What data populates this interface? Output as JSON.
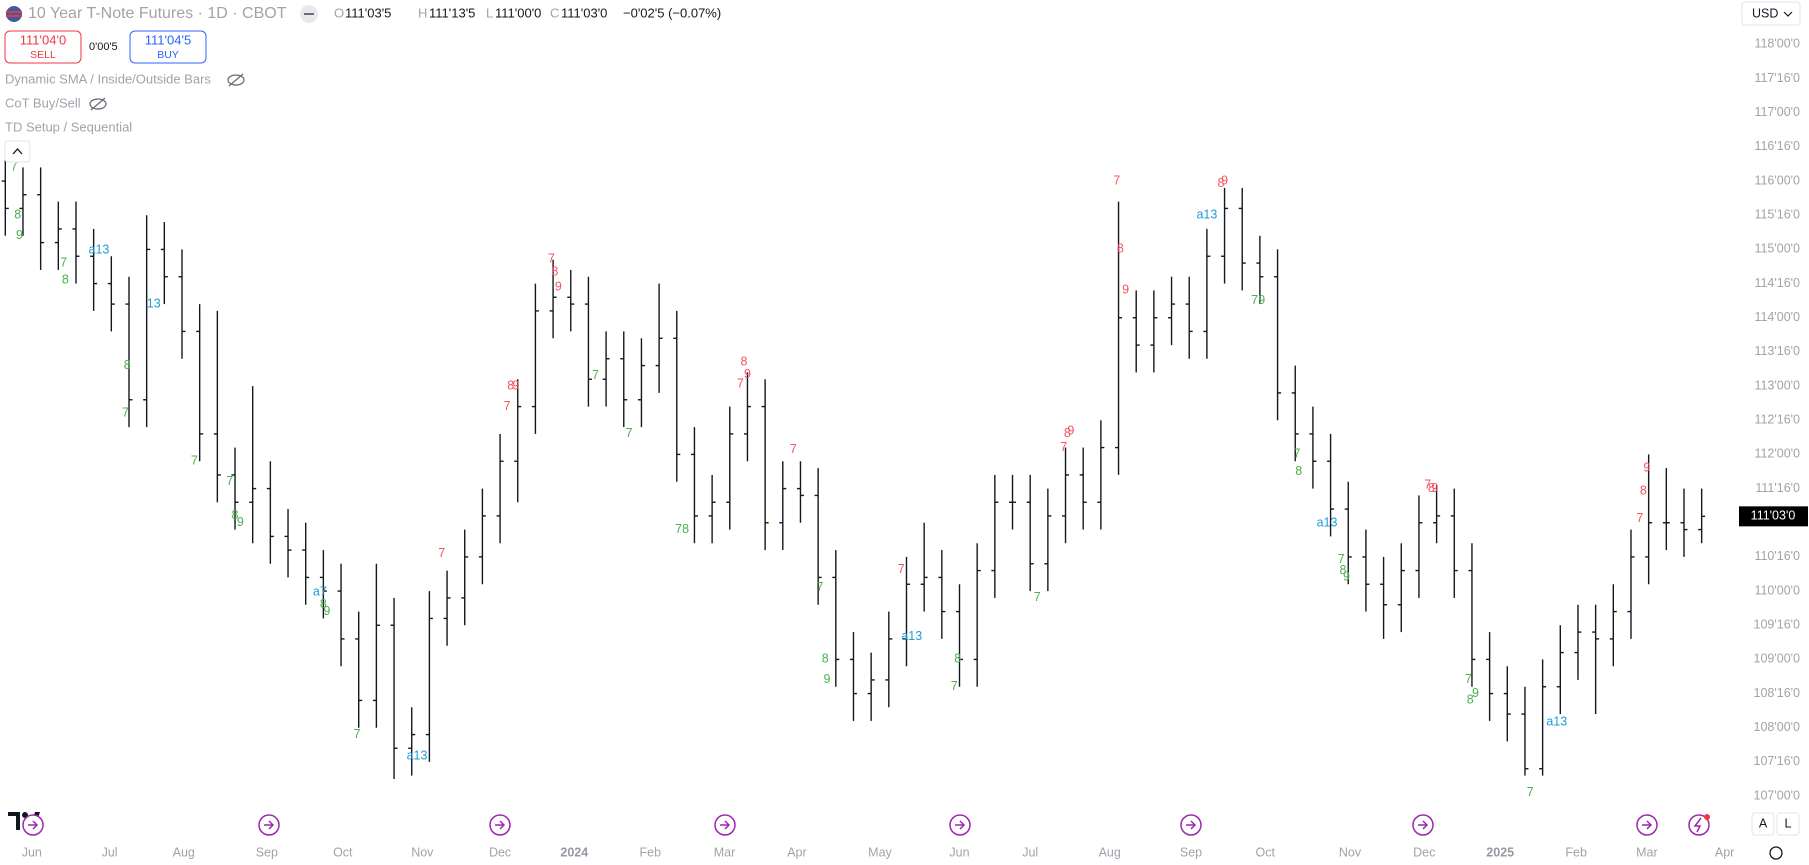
{
  "header": {
    "symbol": "10 Year T-Note Futures · 1D · CBOT",
    "ohlc": [
      {
        "key": "O",
        "value": "111'03'5"
      },
      {
        "key": "H",
        "value": "111'13'5"
      },
      {
        "key": "L",
        "value": "111'00'0"
      },
      {
        "key": "C",
        "value": "111'03'0"
      }
    ],
    "change": "−0'02'5 (−0.07%)",
    "sell": {
      "price": "111'04'0",
      "label": "SELL"
    },
    "spread": "0'00'5",
    "buy": {
      "price": "111'04'5",
      "label": "BUY"
    },
    "indicators": [
      "Dynamic SMA / Inside/Outside Bars",
      "CoT Buy/Sell",
      "TD Setup / Sequential"
    ],
    "currency": "USD",
    "buttons": [
      "A",
      "L"
    ]
  },
  "chart_data": {
    "type": "ohlc",
    "color": "#131722",
    "xlim": [
      -0.3,
      98
    ],
    "ylim": [
      106.65,
      118.65
    ],
    "xticks": [
      {
        "value": 1.5,
        "label": "Jun"
      },
      {
        "value": 5.9,
        "label": "Jul"
      },
      {
        "value": 10.1,
        "label": "Aug"
      },
      {
        "value": 14.8,
        "label": "Sep"
      },
      {
        "value": 19.1,
        "label": "Oct"
      },
      {
        "value": 23.6,
        "label": "Nov"
      },
      {
        "value": 28.0,
        "label": "Dec"
      },
      {
        "value": 32.2,
        "label": "2024"
      },
      {
        "value": 36.5,
        "label": "Feb"
      },
      {
        "value": 40.7,
        "label": "Mar"
      },
      {
        "value": 44.8,
        "label": "Apr"
      },
      {
        "value": 49.5,
        "label": "May"
      },
      {
        "value": 54.0,
        "label": "Jun"
      },
      {
        "value": 58.0,
        "label": "Jul"
      },
      {
        "value": 62.5,
        "label": "Aug"
      },
      {
        "value": 67.1,
        "label": "Sep"
      },
      {
        "value": 71.3,
        "label": "Oct"
      },
      {
        "value": 76.1,
        "label": "Nov"
      },
      {
        "value": 80.3,
        "label": "Dec"
      },
      {
        "value": 84.6,
        "label": "2025"
      },
      {
        "value": 88.9,
        "label": "Feb"
      },
      {
        "value": 92.9,
        "label": "Mar"
      },
      {
        "value": 97.3,
        "label": "Apr"
      }
    ],
    "yticks": [
      {
        "value": 107,
        "label": "107'00'0"
      },
      {
        "value": 107.5,
        "label": "107'16'0"
      },
      {
        "value": 108,
        "label": "108'00'0"
      },
      {
        "value": 108.5,
        "label": "108'16'0"
      },
      {
        "value": 109,
        "label": "109'00'0"
      },
      {
        "value": 109.5,
        "label": "109'16'0"
      },
      {
        "value": 110,
        "label": "110'00'0"
      },
      {
        "value": 110.5,
        "label": "110'16'0"
      },
      {
        "value": 111,
        "label": "111'00'0"
      },
      {
        "value": 111.5,
        "label": "111'16'0"
      },
      {
        "value": 112,
        "label": "112'00'0"
      },
      {
        "value": 112.5,
        "label": "112'16'0"
      },
      {
        "value": 113,
        "label": "113'00'0"
      },
      {
        "value": 113.5,
        "label": "113'16'0"
      },
      {
        "value": 114,
        "label": "114'00'0"
      },
      {
        "value": 114.5,
        "label": "114'16'0"
      },
      {
        "value": 115,
        "label": "115'00'0"
      },
      {
        "value": 115.5,
        "label": "115'16'0"
      },
      {
        "value": 116,
        "label": "116'00'0"
      },
      {
        "value": 116.5,
        "label": "116'16'0"
      },
      {
        "value": 117,
        "label": "117'00'0"
      },
      {
        "value": 117.5,
        "label": "117'16'0"
      },
      {
        "value": 118,
        "label": "118'00'0"
      }
    ],
    "last_price": {
      "value": 111.09375,
      "label": "111'03'0"
    },
    "open": [
      116.0,
      115.6,
      115.8,
      115.1,
      115.3,
      114.9,
      114.5,
      114.2,
      112.8,
      115.0,
      114.6,
      113.8,
      112.3,
      111.7,
      111.3,
      111.5,
      110.8,
      110.6,
      110.2,
      110.0,
      109.3,
      108.4,
      109.5,
      107.7,
      107.9,
      109.6,
      109.9,
      110.5,
      111.1,
      111.9,
      112.7,
      114.1,
      114.3,
      114.2,
      113.1,
      113.4,
      112.8,
      113.3,
      113.7,
      112.0,
      111.1,
      111.3,
      112.3,
      112.7,
      111.0,
      111.5,
      111.4,
      110.2,
      109.0,
      108.5,
      108.7,
      109.3,
      110.1,
      110.2,
      109.7,
      109.0,
      110.3,
      111.3,
      111.3,
      110.4,
      111.1,
      111.7,
      111.3,
      112.1,
      114.0,
      113.6,
      114.0,
      114.2,
      113.8,
      114.9,
      115.6,
      114.8,
      114.6,
      112.9,
      112.3,
      111.9,
      111.2,
      110.5,
      110.1,
      109.8,
      110.3,
      111.0,
      111.1,
      110.3,
      109.0,
      108.5,
      108.2,
      107.4,
      108.6,
      109.1,
      109.4,
      109.3,
      109.7,
      110.5,
      111.0,
      111.0,
      110.9
    ],
    "high": [
      116.4,
      116.2,
      116.2,
      115.7,
      115.7,
      115.3,
      114.9,
      114.6,
      115.5,
      115.4,
      115.0,
      114.2,
      114.1,
      112.1,
      113.0,
      111.9,
      111.2,
      111.0,
      110.6,
      110.4,
      109.7,
      110.4,
      109.9,
      108.3,
      110.0,
      110.3,
      110.9,
      111.5,
      112.3,
      113.1,
      114.5,
      114.85,
      114.7,
      114.6,
      113.8,
      113.8,
      113.7,
      114.5,
      114.1,
      112.4,
      111.7,
      112.7,
      113.2,
      113.1,
      111.9,
      111.9,
      111.8,
      110.6,
      109.4,
      109.1,
      109.7,
      110.5,
      111.0,
      110.6,
      110.1,
      110.7,
      111.7,
      111.7,
      111.7,
      111.5,
      112.1,
      112.1,
      112.5,
      115.7,
      114.4,
      114.4,
      114.6,
      114.6,
      115.3,
      115.9,
      115.9,
      115.2,
      115.0,
      113.3,
      112.7,
      112.3,
      111.6,
      110.9,
      110.5,
      110.7,
      111.4,
      111.55,
      111.5,
      110.7,
      109.4,
      108.9,
      108.6,
      109.0,
      109.5,
      109.8,
      109.8,
      110.1,
      110.9,
      112.0,
      111.8,
      111.5,
      111.5
    ],
    "low": [
      115.2,
      115.2,
      114.7,
      114.7,
      114.5,
      114.1,
      113.8,
      112.4,
      112.4,
      114.2,
      113.4,
      111.9,
      111.3,
      110.9,
      110.7,
      110.4,
      110.2,
      109.8,
      109.6,
      108.9,
      108.0,
      108.0,
      107.25,
      107.3,
      107.5,
      109.2,
      109.5,
      110.1,
      110.7,
      111.3,
      112.3,
      113.7,
      113.8,
      112.7,
      112.7,
      112.4,
      112.4,
      112.9,
      111.6,
      110.7,
      110.7,
      110.9,
      111.9,
      110.6,
      110.6,
      111.0,
      109.8,
      108.6,
      108.1,
      108.1,
      108.3,
      108.9,
      109.7,
      109.3,
      108.6,
      108.6,
      109.9,
      110.9,
      110.0,
      110.0,
      110.7,
      110.9,
      110.9,
      111.7,
      113.2,
      113.2,
      113.6,
      113.4,
      113.4,
      114.5,
      114.4,
      114.2,
      112.5,
      111.9,
      111.5,
      110.8,
      110.1,
      109.7,
      109.3,
      109.4,
      109.9,
      110.7,
      109.9,
      108.6,
      108.1,
      107.8,
      107.3,
      107.3,
      108.2,
      108.7,
      108.2,
      108.9,
      109.3,
      110.1,
      110.6,
      110.5,
      110.7
    ],
    "close": [
      115.6,
      115.8,
      115.1,
      115.3,
      114.9,
      114.5,
      114.2,
      112.8,
      115.0,
      114.6,
      113.8,
      112.3,
      111.7,
      111.3,
      111.5,
      110.8,
      110.6,
      110.2,
      110.0,
      109.3,
      108.4,
      109.5,
      107.7,
      107.9,
      109.6,
      109.9,
      110.5,
      111.1,
      111.9,
      112.7,
      114.1,
      114.3,
      114.2,
      113.1,
      113.4,
      112.8,
      113.3,
      113.7,
      112.0,
      111.1,
      111.3,
      112.3,
      112.7,
      111.0,
      111.5,
      111.4,
      110.2,
      109.0,
      108.5,
      108.7,
      109.3,
      110.1,
      110.2,
      109.7,
      109.0,
      110.3,
      111.3,
      111.3,
      110.4,
      111.1,
      111.7,
      111.3,
      112.1,
      114.0,
      113.6,
      114.0,
      114.2,
      113.8,
      114.9,
      115.6,
      114.8,
      114.6,
      112.9,
      112.3,
      111.9,
      111.2,
      110.5,
      110.1,
      109.8,
      110.3,
      111.0,
      111.1,
      110.3,
      109.0,
      108.5,
      108.2,
      107.4,
      108.6,
      109.1,
      109.4,
      109.3,
      109.7,
      110.5,
      111.0,
      111.0,
      110.9,
      111.09375
    ],
    "annotations": [
      {
        "color": "#4caf50",
        "labels": [
          {
            "text": "7",
            "x": 0.5,
            "y": 116.2
          },
          {
            "text": "8",
            "x": 0.7,
            "y": 115.5
          },
          {
            "text": "9",
            "x": 0.8,
            "y": 115.2
          },
          {
            "text": "7",
            "x": 3.3,
            "y": 114.8
          },
          {
            "text": "8",
            "x": 3.4,
            "y": 114.55
          },
          {
            "text": "8",
            "x": 6.9,
            "y": 113.3
          },
          {
            "text": "7",
            "x": 6.8,
            "y": 112.6
          },
          {
            "text": "7",
            "x": 10.7,
            "y": 111.9
          },
          {
            "text": "7",
            "x": 12.7,
            "y": 111.6
          },
          {
            "text": "8",
            "x": 13.0,
            "y": 111.1
          },
          {
            "text": "9",
            "x": 13.3,
            "y": 111.0
          },
          {
            "text": "8",
            "x": 18.0,
            "y": 109.8
          },
          {
            "text": "9",
            "x": 18.2,
            "y": 109.7
          },
          {
            "text": "7",
            "x": 19.9,
            "y": 107.9
          },
          {
            "text": "7",
            "x": 33.4,
            "y": 113.15
          },
          {
            "text": "7",
            "x": 35.3,
            "y": 112.3
          },
          {
            "text": "7",
            "x": 38.1,
            "y": 110.9
          },
          {
            "text": "8",
            "x": 38.5,
            "y": 110.9
          },
          {
            "text": "7",
            "x": 46.1,
            "y": 110.05
          },
          {
            "text": "8",
            "x": 46.4,
            "y": 109.0
          },
          {
            "text": "9",
            "x": 46.5,
            "y": 108.7
          },
          {
            "text": "8",
            "x": 53.9,
            "y": 109.0
          },
          {
            "text": "7",
            "x": 53.7,
            "y": 108.6
          },
          {
            "text": "7",
            "x": 58.4,
            "y": 109.9
          },
          {
            "text": "7",
            "x": 70.7,
            "y": 114.25
          },
          {
            "text": "9",
            "x": 71.1,
            "y": 114.25
          },
          {
            "text": "7",
            "x": 73.1,
            "y": 112.0
          },
          {
            "text": "8",
            "x": 73.2,
            "y": 111.75
          },
          {
            "text": "7",
            "x": 75.6,
            "y": 110.46
          },
          {
            "text": "8",
            "x": 75.7,
            "y": 110.3
          },
          {
            "text": "9",
            "x": 75.9,
            "y": 110.2
          },
          {
            "text": "7",
            "x": 82.8,
            "y": 108.7
          },
          {
            "text": "8",
            "x": 82.9,
            "y": 108.4
          },
          {
            "text": "9",
            "x": 83.2,
            "y": 108.5
          },
          {
            "text": "7",
            "x": 86.3,
            "y": 107.05
          }
        ]
      },
      {
        "color": "#f7525f",
        "labels": [
          {
            "text": "7",
            "x": 24.7,
            "y": 110.55
          },
          {
            "text": "7",
            "x": 28.4,
            "y": 112.7
          },
          {
            "text": "8",
            "x": 28.6,
            "y": 113.0
          },
          {
            "text": "9",
            "x": 28.9,
            "y": 113.0
          },
          {
            "text": "7",
            "x": 30.9,
            "y": 114.86
          },
          {
            "text": "8",
            "x": 31.1,
            "y": 114.67
          },
          {
            "text": "9",
            "x": 31.3,
            "y": 114.45
          },
          {
            "text": "8",
            "x": 41.8,
            "y": 113.35
          },
          {
            "text": "7",
            "x": 41.6,
            "y": 113.03
          },
          {
            "text": "9",
            "x": 42.0,
            "y": 113.17
          },
          {
            "text": "7",
            "x": 44.6,
            "y": 112.07
          },
          {
            "text": "7",
            "x": 50.7,
            "y": 110.31
          },
          {
            "text": "7",
            "x": 59.9,
            "y": 112.1
          },
          {
            "text": "8",
            "x": 60.1,
            "y": 112.3
          },
          {
            "text": "9",
            "x": 60.3,
            "y": 112.34
          },
          {
            "text": "7",
            "x": 62.9,
            "y": 116.0
          },
          {
            "text": "8",
            "x": 63.1,
            "y": 115.0
          },
          {
            "text": "9",
            "x": 63.4,
            "y": 114.4
          },
          {
            "text": "8",
            "x": 68.8,
            "y": 115.96
          },
          {
            "text": "9",
            "x": 69.0,
            "y": 116.0
          },
          {
            "text": "7",
            "x": 80.5,
            "y": 111.55
          },
          {
            "text": "8",
            "x": 80.7,
            "y": 111.5
          },
          {
            "text": "9",
            "x": 80.9,
            "y": 111.5
          },
          {
            "text": "9",
            "x": 92.9,
            "y": 111.8
          },
          {
            "text": "8",
            "x": 92.7,
            "y": 111.46
          },
          {
            "text": "7",
            "x": 92.5,
            "y": 111.06
          }
        ]
      },
      {
        "color": "#1e9bd7",
        "labels": [
          {
            "text": "a13",
            "x": 5.3,
            "y": 114.99
          },
          {
            "text": "13",
            "x": 8.4,
            "y": 114.2
          },
          {
            "text": "a7",
            "x": 17.8,
            "y": 109.98
          },
          {
            "text": "a13",
            "x": 23.3,
            "y": 107.58
          },
          {
            "text": "a13",
            "x": 51.3,
            "y": 109.33
          },
          {
            "text": "a13",
            "x": 68.0,
            "y": 115.5
          },
          {
            "text": "a13",
            "x": 74.8,
            "y": 110.99
          },
          {
            "text": "a13",
            "x": 87.8,
            "y": 108.08
          }
        ]
      }
    ]
  }
}
